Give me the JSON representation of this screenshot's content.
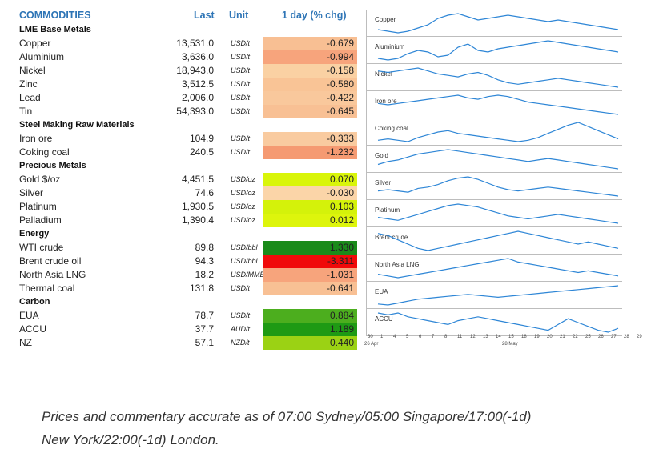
{
  "header": {
    "commodities": "COMMODITIES",
    "last": "Last",
    "unit": "Unit",
    "change": "1 day (% chg)"
  },
  "groups": [
    {
      "title": "LME Base Metals",
      "rows": [
        {
          "name": "Copper",
          "last": "13,531.0",
          "unit": "USD/t",
          "chg": "-0.679",
          "color": "#f8bf93"
        },
        {
          "name": "Aluminium",
          "last": "3,636.0",
          "unit": "USD/t",
          "chg": "-0.994",
          "color": "#f7a47c"
        },
        {
          "name": "Nickel",
          "last": "18,943.0",
          "unit": "USD/t",
          "chg": "-0.158",
          "color": "#fad1a3"
        },
        {
          "name": "Zinc",
          "last": "3,512.5",
          "unit": "USD/t",
          "chg": "-0.580",
          "color": "#f9c496"
        },
        {
          "name": "Lead",
          "last": "2,006.0",
          "unit": "USD/t",
          "chg": "-0.422",
          "color": "#f9c89c"
        },
        {
          "name": "Tin",
          "last": "54,393.0",
          "unit": "USD/t",
          "chg": "-0.645",
          "color": "#f8c094"
        }
      ]
    },
    {
      "title": "Steel Making Raw Materials",
      "rows": [
        {
          "name": "Iron ore",
          "last": "104.9",
          "unit": "USD/t",
          "chg": "-0.333",
          "color": "#f9cba0"
        },
        {
          "name": "Coking coal",
          "last": "240.5",
          "unit": "USD/t",
          "chg": "-1.232",
          "color": "#f59a72"
        }
      ]
    },
    {
      "title": "Precious Metals",
      "rows": [
        {
          "name": "Gold $/oz",
          "last": "4,451.5",
          "unit": "USD/oz",
          "chg": "0.070",
          "color": "#d9f50a"
        },
        {
          "name": "Silver",
          "last": "74.6",
          "unit": "USD/oz",
          "chg": "-0.030",
          "color": "#fbd5a8"
        },
        {
          "name": "Platinum",
          "last": "1,930.5",
          "unit": "USD/oz",
          "chg": "0.103",
          "color": "#d4f20a"
        },
        {
          "name": "Palladium",
          "last": "1,390.4",
          "unit": "USD/oz",
          "chg": "0.012",
          "color": "#ddf50c"
        }
      ]
    },
    {
      "title": "Energy",
      "rows": [
        {
          "name": "WTI crude",
          "last": "89.8",
          "unit": "USD/bbl",
          "chg": "1.330",
          "color": "#1a8a1a"
        },
        {
          "name": "Brent crude oil",
          "last": "94.3",
          "unit": "USD/bbl",
          "chg": "-3.311",
          "color": "#f00a0a"
        },
        {
          "name": "North Asia LNG",
          "last": "18.2",
          "unit": "USD/MMBtu",
          "chg": "-1.031",
          "color": "#f7a47c"
        },
        {
          "name": "Thermal coal",
          "last": "131.8",
          "unit": "USD/t",
          "chg": "-0.641",
          "color": "#f8c094"
        }
      ]
    },
    {
      "title": "Carbon",
      "rows": [
        {
          "name": "EUA",
          "last": "78.7",
          "unit": "USD/t",
          "chg": "0.884",
          "color": "#4cae1e"
        },
        {
          "name": "ACCU",
          "last": "37.7",
          "unit": "AUD/t",
          "chg": "1.189",
          "color": "#1e9a14"
        },
        {
          "name": "NZ",
          "last": "57.1",
          "unit": "NZD/t",
          "chg": "0.440",
          "color": "#9bd214"
        }
      ]
    }
  ],
  "sparklines": [
    {
      "label": "Copper",
      "values": [
        42,
        40,
        38,
        40,
        44,
        48,
        56,
        60,
        62,
        58,
        54,
        56,
        58,
        60,
        58,
        56,
        54,
        52,
        54,
        52,
        50,
        48,
        46,
        44,
        42
      ]
    },
    {
      "label": "Aluminium",
      "values": [
        38,
        36,
        38,
        44,
        48,
        46,
        40,
        42,
        52,
        56,
        48,
        46,
        50,
        52,
        54,
        56,
        58,
        60,
        58,
        56,
        54,
        52,
        50,
        48,
        46
      ]
    },
    {
      "label": "Nickel",
      "values": [
        60,
        58,
        60,
        62,
        64,
        60,
        56,
        54,
        52,
        56,
        58,
        54,
        48,
        44,
        42,
        44,
        46,
        48,
        50,
        48,
        46,
        44,
        42,
        40,
        38
      ]
    },
    {
      "label": "Iron ore",
      "values": [
        50,
        48,
        50,
        52,
        54,
        56,
        58,
        60,
        62,
        58,
        56,
        60,
        62,
        60,
        56,
        52,
        50,
        48,
        46,
        44,
        42,
        40,
        38,
        36,
        34
      ]
    },
    {
      "label": "Coking coal",
      "values": [
        30,
        32,
        30,
        28,
        34,
        38,
        42,
        44,
        40,
        38,
        36,
        34,
        32,
        30,
        28,
        30,
        34,
        40,
        46,
        52,
        56,
        50,
        44,
        38,
        32
      ]
    },
    {
      "label": "Gold",
      "values": [
        40,
        44,
        46,
        50,
        54,
        56,
        58,
        60,
        58,
        56,
        54,
        52,
        50,
        48,
        46,
        44,
        46,
        48,
        46,
        44,
        42,
        40,
        38,
        36,
        34
      ]
    },
    {
      "label": "Silver",
      "values": [
        40,
        42,
        40,
        38,
        44,
        46,
        50,
        56,
        60,
        62,
        58,
        52,
        46,
        42,
        40,
        42,
        44,
        46,
        44,
        42,
        40,
        38,
        36,
        34,
        32
      ]
    },
    {
      "label": "Platinum",
      "values": [
        40,
        38,
        36,
        40,
        44,
        48,
        52,
        56,
        58,
        56,
        54,
        50,
        46,
        42,
        40,
        38,
        40,
        42,
        44,
        42,
        40,
        38,
        36,
        34,
        32
      ]
    },
    {
      "label": "Brent crude",
      "values": [
        50,
        48,
        44,
        40,
        36,
        34,
        36,
        38,
        40,
        42,
        44,
        46,
        48,
        50,
        52,
        50,
        48,
        46,
        44,
        42,
        40,
        42,
        40,
        38,
        36
      ]
    },
    {
      "label": "North Asia LNG",
      "values": [
        34,
        32,
        30,
        32,
        34,
        36,
        38,
        40,
        42,
        44,
        46,
        48,
        50,
        52,
        48,
        46,
        44,
        42,
        40,
        38,
        36,
        38,
        36,
        34,
        32
      ]
    },
    {
      "label": "EUA",
      "values": [
        30,
        28,
        32,
        36,
        40,
        42,
        44,
        46,
        48,
        50,
        48,
        46,
        44,
        46,
        48,
        50,
        52,
        54,
        56,
        58,
        60,
        62,
        64,
        66,
        68
      ]
    },
    {
      "label": "ACCU",
      "values": [
        50,
        48,
        50,
        46,
        44,
        42,
        40,
        38,
        42,
        44,
        46,
        44,
        42,
        40,
        38,
        36,
        34,
        32,
        38,
        44,
        40,
        36,
        32,
        30,
        34
      ]
    }
  ],
  "axis": {
    "ticks": [
      "30",
      "1",
      "4",
      "5",
      "6",
      "7",
      "8",
      "11",
      "12",
      "13",
      "14",
      "15",
      "18",
      "19",
      "20",
      "21",
      "22",
      "25",
      "26",
      "27",
      "28",
      "29"
    ],
    "start_label": "26 Apr",
    "mid_label": "28 May"
  },
  "footer": {
    "line1": "Prices and commentary accurate as of 07:00 Sydney/05:00 Singapore/17:00(-1d)",
    "line2": "New York/22:00(-1d) London."
  }
}
